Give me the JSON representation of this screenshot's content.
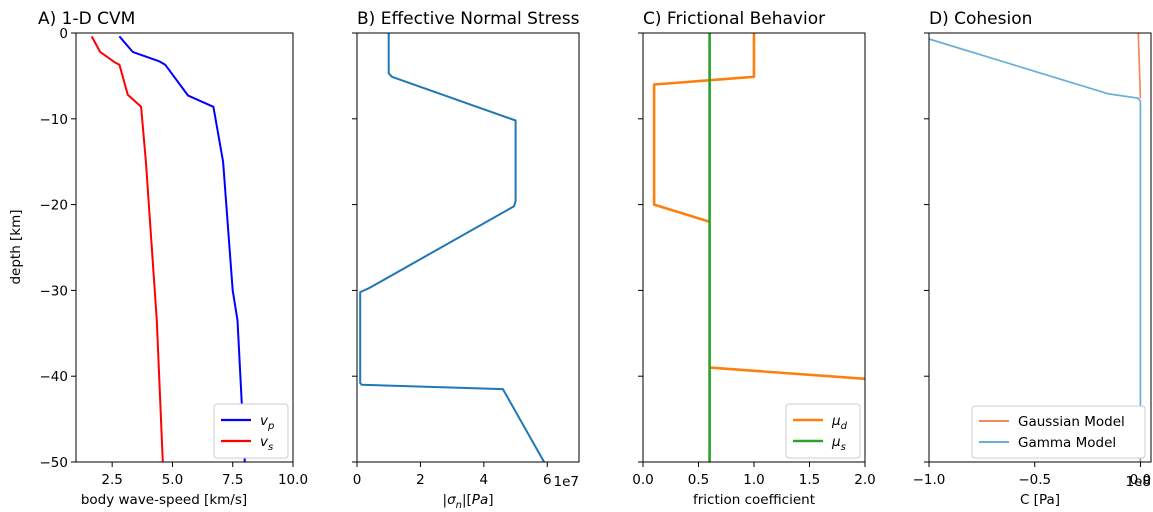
{
  "chart_data": [
    {
      "type": "line",
      "title": "A) 1-D CVM",
      "xlabel": "body wave-speed [km/s]",
      "ylabel": "depth [km]",
      "xlim": [
        1.0,
        10.0
      ],
      "ylim": [
        -50,
        0
      ],
      "xticks": [
        "2.5",
        "5.0",
        "7.5",
        "10.0"
      ],
      "yticks": [
        "0",
        "−10",
        "−20",
        "−30",
        "−40",
        "−50"
      ],
      "legend": "bottom-right",
      "series": [
        {
          "name": "v_p",
          "color": "#0000ff",
          "x": [
            2.8,
            3.35,
            4.45,
            4.7,
            5.65,
            6.7,
            7.1,
            7.5,
            7.7,
            8.0
          ],
          "y": [
            -0.4,
            -2.2,
            -3.3,
            -3.7,
            -7.3,
            -8.6,
            -15.0,
            -30.0,
            -33.5,
            -50.0
          ]
        },
        {
          "name": "v_s",
          "color": "#ff0000",
          "x": [
            1.65,
            2.0,
            2.6,
            2.8,
            3.15,
            3.7,
            3.9,
            4.35,
            4.6
          ],
          "y": [
            -0.4,
            -2.2,
            -3.4,
            -3.7,
            -7.2,
            -8.6,
            -15.0,
            -33.5,
            -50.0
          ]
        }
      ]
    },
    {
      "type": "line",
      "title": "B) Effective Normal Stress",
      "xlabel": "|σ_n|[Pa]",
      "ylabel": "",
      "x_offset_label": "1e7",
      "xlim": [
        0,
        7
      ],
      "ylim": [
        -50,
        0
      ],
      "xticks": [
        "0",
        "2",
        "4",
        "6"
      ],
      "series": [
        {
          "name": "",
          "color": "#1f77b4",
          "x": [
            1.0,
            1.0,
            1.1,
            5.0,
            5.0,
            4.95,
            0.4,
            0.1,
            0.1,
            0.15,
            4.6,
            5.9
          ],
          "y": [
            0.0,
            -4.7,
            -5.1,
            -10.2,
            -19.6,
            -20.2,
            -29.7,
            -30.2,
            -40.8,
            -41.0,
            -41.5,
            -50.0
          ]
        }
      ]
    },
    {
      "type": "line",
      "title": "C) Frictional Behavior",
      "xlabel": "friction coefficient",
      "ylabel": "",
      "xlim": [
        0.0,
        2.0
      ],
      "ylim": [
        -50,
        0
      ],
      "xticks": [
        "0.0",
        "0.5",
        "1.0",
        "1.5",
        "2.0"
      ],
      "legend": "bottom-right",
      "series": [
        {
          "name": "μ_d",
          "color": "#ff7f0e",
          "x": [
            1.0,
            1.0,
            0.1,
            0.1,
            0.6
          ],
          "y": [
            0.0,
            -5.1,
            -6.0,
            -20.0,
            -22.0
          ]
        },
        {
          "name": "μ_d",
          "color": "#ff7f0e",
          "x": [
            0.6,
            2.0
          ],
          "y": [
            -39.0,
            -40.3
          ]
        },
        {
          "name": "μ_s",
          "color": "#2ca02c",
          "x": [
            0.6,
            0.6
          ],
          "y": [
            0.0,
            -50.0
          ]
        }
      ]
    },
    {
      "type": "line",
      "title": "D) Cohesion",
      "xlabel": "C [Pa]",
      "ylabel": "",
      "x_offset_label": "1e8",
      "xlim": [
        -1.0,
        0.05
      ],
      "ylim": [
        -50,
        0
      ],
      "xticks": [
        "−1.0",
        "−0.5",
        "0.0"
      ],
      "legend": "bottom-right",
      "series": [
        {
          "name": "Gaussian Model",
          "color": "#f08a5d",
          "x": [
            -0.01,
            0.0
          ],
          "y": [
            0.0,
            -7.6
          ]
        },
        {
          "name": "Gamma Model",
          "color": "#6aaed6",
          "x": [
            -1.0,
            -0.15,
            -0.01,
            0.0,
            0.0
          ],
          "y": [
            -0.7,
            -7.1,
            -7.6,
            -8.0,
            -50.0
          ]
        }
      ]
    }
  ],
  "legend_labels": {
    "vp": [
      "v",
      "p"
    ],
    "vs": [
      "v",
      "s"
    ],
    "mud": [
      "μ",
      "d"
    ],
    "mus": [
      "μ",
      "s"
    ]
  }
}
